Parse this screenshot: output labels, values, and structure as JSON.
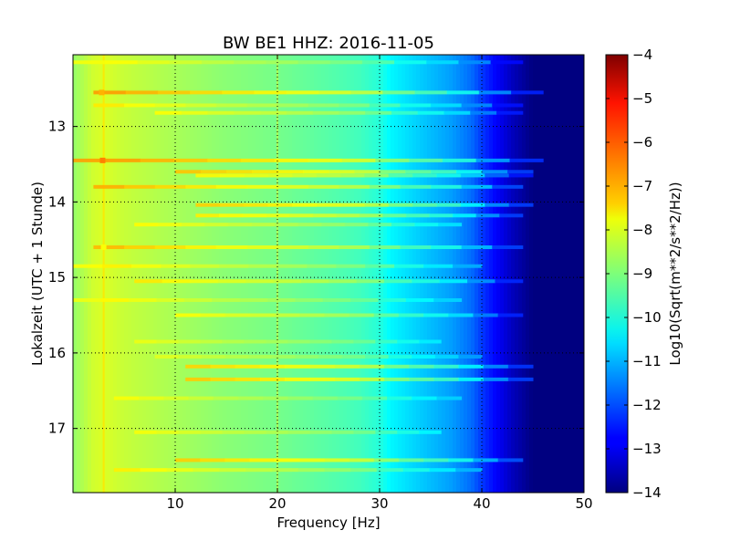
{
  "chart_data": {
    "type": "heatmap",
    "title": "BW BE1 HHZ: 2016-11-05",
    "xlabel": "Frequency [Hz]",
    "ylabel": "Lokalzeit (UTC + 1 Stunde)",
    "xlim": [
      0,
      50
    ],
    "ylim": [
      12.05,
      17.85
    ],
    "y_inverted": true,
    "grid": true,
    "x_ticks": [
      10,
      20,
      30,
      40,
      50
    ],
    "x_tick_labels": [
      "10",
      "20",
      "30",
      "40",
      "50"
    ],
    "y_ticks": [
      13,
      14,
      15,
      16,
      17
    ],
    "y_tick_labels": [
      "13",
      "14",
      "15",
      "16",
      "17"
    ],
    "colorbar": {
      "label": "Log10(Sqrt(m**2/s**2/Hz))",
      "range": [
        -14,
        -4
      ],
      "ticks": [
        -4,
        -5,
        -6,
        -7,
        -8,
        -9,
        -10,
        -11,
        -12,
        -13,
        -14
      ],
      "tick_labels": [
        "−4",
        "−5",
        "−6",
        "−7",
        "−8",
        "−9",
        "−10",
        "−11",
        "−12",
        "−13",
        "−14"
      ],
      "colormap": "jet"
    },
    "spectrum_profile": {
      "frequency_hz": [
        0,
        1,
        2,
        3,
        5,
        10,
        15,
        20,
        25,
        28,
        30,
        31,
        33,
        35,
        37,
        39,
        40,
        41,
        42,
        43,
        44,
        45,
        46,
        47,
        50
      ],
      "level": [
        -8.8,
        -8.5,
        -8.2,
        -8.1,
        -8.3,
        -8.6,
        -8.9,
        -9.1,
        -9.4,
        -9.6,
        -9.9,
        -10.3,
        -10.6,
        -10.9,
        -11.2,
        -11.7,
        -12.2,
        -12.6,
        -13.0,
        -13.4,
        -13.7,
        -14.0,
        -14.0,
        -14.0,
        -14.0
      ]
    },
    "noise_bands": [
      {
        "time": 12.15,
        "fmin": 0,
        "fmax": 44,
        "level_offset": 0.5
      },
      {
        "time": 12.55,
        "fmin": 2,
        "fmax": 46,
        "level_offset": 1.4
      },
      {
        "time": 12.72,
        "fmin": 2,
        "fmax": 44,
        "level_offset": 0.6
      },
      {
        "time": 12.82,
        "fmin": 8,
        "fmax": 44,
        "level_offset": 0.8
      },
      {
        "time": 13.45,
        "fmin": 0,
        "fmax": 46,
        "level_offset": 1.5
      },
      {
        "time": 13.6,
        "fmin": 10,
        "fmax": 45,
        "level_offset": 1.5
      },
      {
        "time": 13.65,
        "fmin": 12,
        "fmax": 45,
        "level_offset": 1.1
      },
      {
        "time": 13.8,
        "fmin": 2,
        "fmax": 44,
        "level_offset": 1.2
      },
      {
        "time": 14.04,
        "fmin": 12,
        "fmax": 45,
        "level_offset": 1.5
      },
      {
        "time": 14.18,
        "fmin": 12,
        "fmax": 44,
        "level_offset": 1.2
      },
      {
        "time": 14.3,
        "fmin": 6,
        "fmax": 38,
        "level_offset": 0.7
      },
      {
        "time": 14.6,
        "fmin": 2,
        "fmax": 44,
        "level_offset": 1.1
      },
      {
        "time": 14.85,
        "fmin": 0,
        "fmax": 40,
        "level_offset": 0.6
      },
      {
        "time": 15.05,
        "fmin": 6,
        "fmax": 44,
        "level_offset": 0.9
      },
      {
        "time": 15.3,
        "fmin": 0,
        "fmax": 38,
        "level_offset": 0.5
      },
      {
        "time": 15.5,
        "fmin": 10,
        "fmax": 44,
        "level_offset": 0.9
      },
      {
        "time": 15.85,
        "fmin": 6,
        "fmax": 36,
        "level_offset": 0.5
      },
      {
        "time": 16.05,
        "fmin": 8,
        "fmax": 40,
        "level_offset": 0.5
      },
      {
        "time": 16.18,
        "fmin": 11,
        "fmax": 45,
        "level_offset": 1.4
      },
      {
        "time": 16.35,
        "fmin": 11,
        "fmax": 45,
        "level_offset": 1.5
      },
      {
        "time": 16.6,
        "fmin": 4,
        "fmax": 38,
        "level_offset": 0.5
      },
      {
        "time": 17.05,
        "fmin": 6,
        "fmax": 36,
        "level_offset": 0.6
      },
      {
        "time": 17.42,
        "fmin": 10,
        "fmax": 44,
        "level_offset": 1.4
      },
      {
        "time": 17.55,
        "fmin": 4,
        "fmax": 40,
        "level_offset": 0.7
      }
    ],
    "hotspots": [
      {
        "time": 12.55,
        "freq": 2.8,
        "level": -7.0
      },
      {
        "time": 13.45,
        "freq": 2.9,
        "level": -6.5
      },
      {
        "time": 14.6,
        "freq": 3.0,
        "level": -7.8
      }
    ],
    "persistent_lines_hz": [
      20,
      3
    ]
  }
}
